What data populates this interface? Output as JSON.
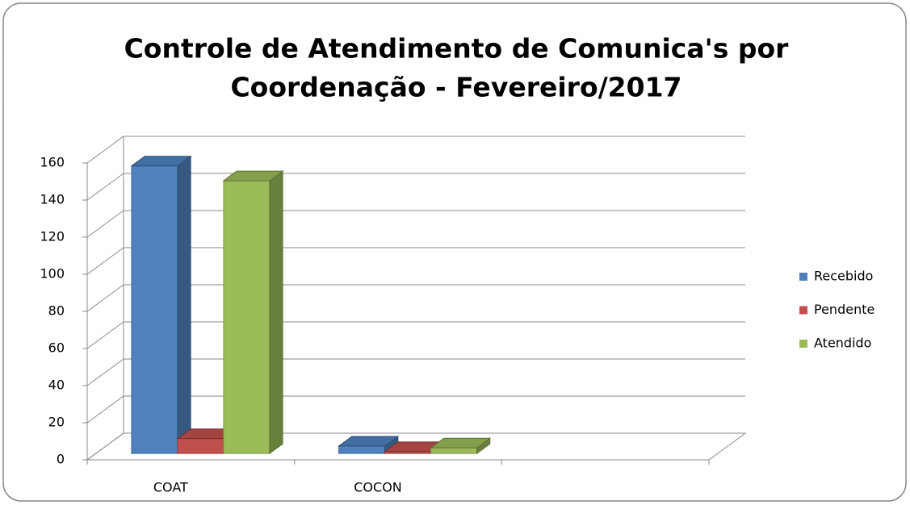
{
  "chart_data": {
    "type": "bar3d",
    "title": [
      "Controle de Atendimento de Comunica's por",
      "Coordenação - Fevereiro/2017"
    ],
    "categories": [
      "COAT",
      "COCON",
      null
    ],
    "series": [
      {
        "name": "Recebido",
        "color": "#4f81bd",
        "values": [
          155,
          4,
          null
        ]
      },
      {
        "name": "Pendente",
        "color": "#c0504d",
        "values": [
          8,
          1,
          null
        ]
      },
      {
        "name": "Atendido",
        "color": "#9bbb59",
        "values": [
          147,
          3,
          null
        ]
      }
    ],
    "ylim": [
      0,
      160
    ],
    "yticks": [
      0,
      20,
      40,
      60,
      80,
      100,
      120,
      140,
      160
    ],
    "grid": true,
    "legend": "right"
  }
}
